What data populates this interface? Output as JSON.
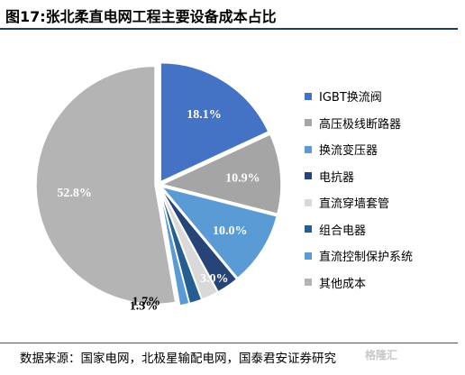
{
  "header": {
    "title": "图17:张北柔直电网工程主要设备成本占比"
  },
  "footer": {
    "source": "数据来源：国家电网，北极星输配电网，国泰君安证券研究",
    "watermark": "格隆汇"
  },
  "chart_data": {
    "type": "pie",
    "title": "图17:张北柔直电网工程主要设备成本占比",
    "legend_position": "right",
    "slices": [
      {
        "label": "IGBT换流阀",
        "value": 18.1,
        "display": "18.1%",
        "color": "#4472c4",
        "label_color": "#ffffff"
      },
      {
        "label": "高压极线断路器",
        "value": 10.9,
        "display": "10.9%",
        "color": "#a5a5a5",
        "label_color": "#ffffff"
      },
      {
        "label": "换流变压器",
        "value": 10.0,
        "display": "10.0%",
        "color": "#5b9bd5",
        "label_color": "#ffffff"
      },
      {
        "label": "电抗器",
        "value": 3.0,
        "display": "3.0%",
        "color": "#264478",
        "label_color": "#ffffff"
      },
      {
        "label": "直流穿墙套管",
        "value": 2.3,
        "display": "",
        "color": "#d9d9d9",
        "label_color": "#000000"
      },
      {
        "label": "组合电器",
        "value": 1.7,
        "display": "1.7%",
        "color": "#255e91",
        "label_color": "#000000"
      },
      {
        "label": "直流控制保护系统",
        "value": 1.3,
        "display": "1.3%",
        "color": "#5b9bd5",
        "label_color": "#000000"
      },
      {
        "label": "其他成本",
        "value": 52.8,
        "display": "52.8%",
        "color": "#b4b4b4",
        "label_color": "#ffffff"
      }
    ]
  }
}
